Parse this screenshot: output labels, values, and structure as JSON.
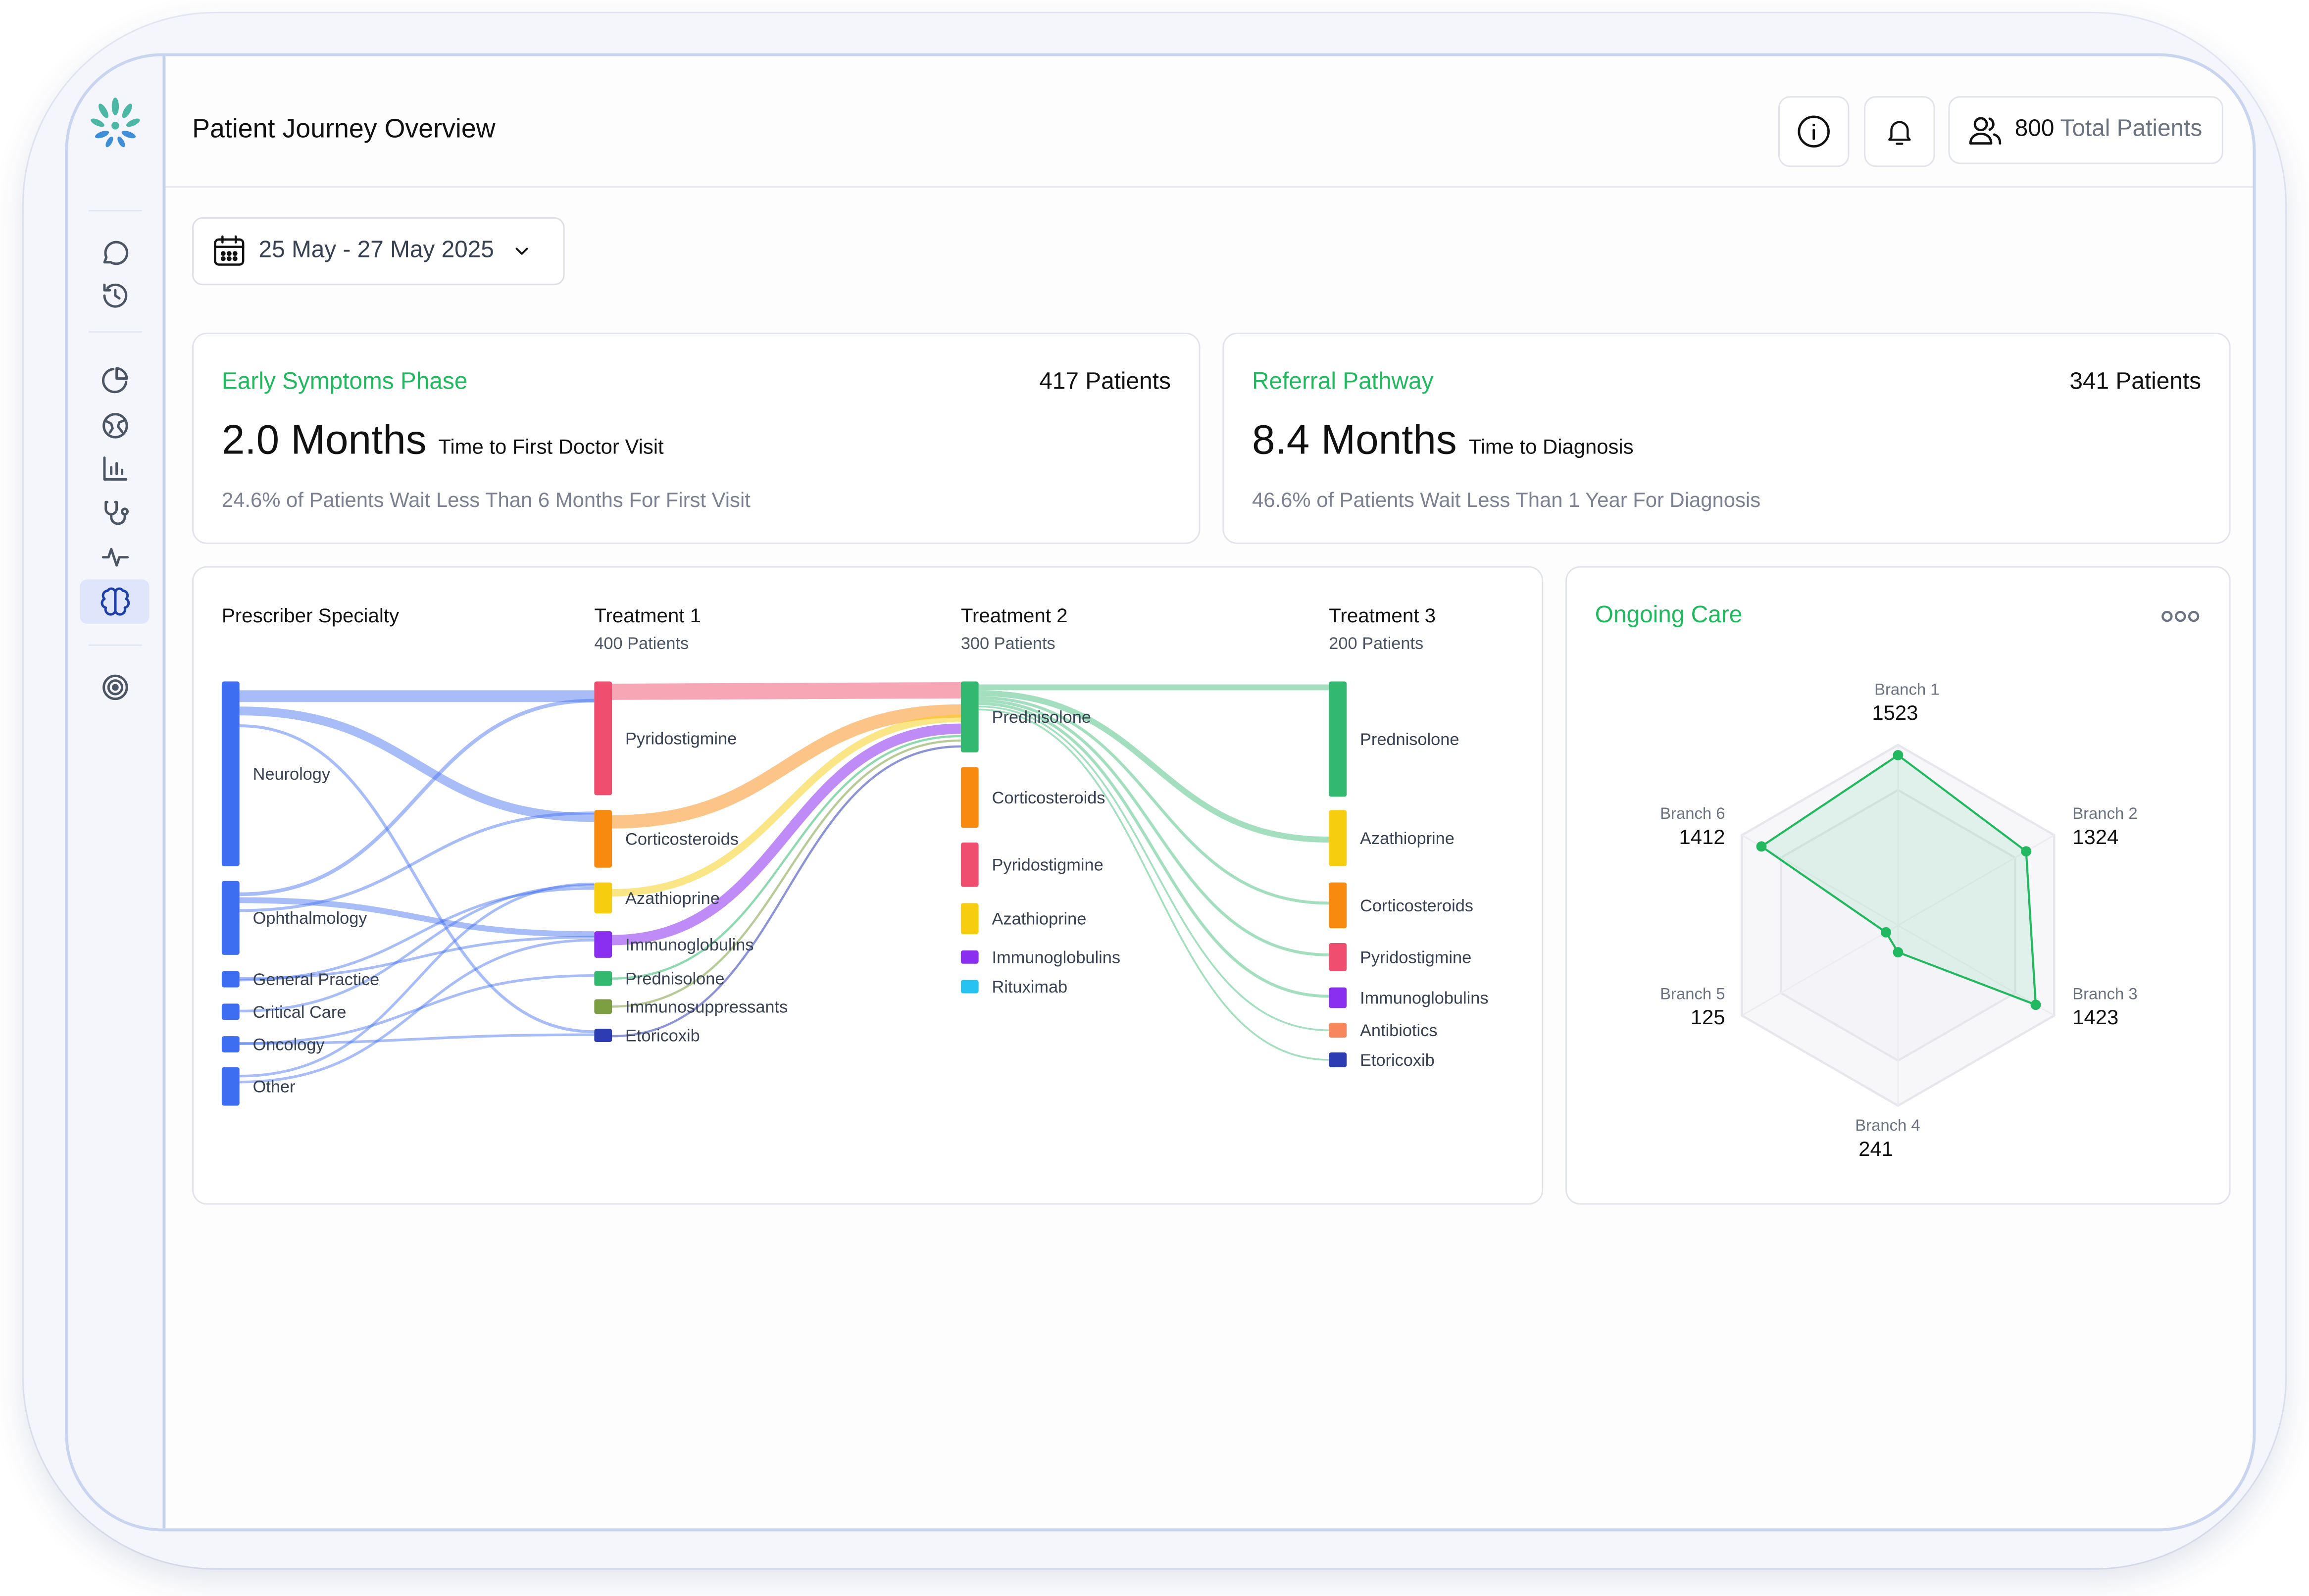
{
  "header": {
    "title": "Patient Journey Overview",
    "total_patients_value": "800",
    "total_patients_label": "Total Patients"
  },
  "date_range": "25 May - 27 May 2025",
  "kpi_cards": [
    {
      "title": "Early Symptoms Phase",
      "patients": "417 Patients",
      "value": "2.0 Months",
      "metric": "Time to First Doctor Visit",
      "note": "24.6% of Patients Wait Less Than 6 Months For First Visit"
    },
    {
      "title": "Referral Pathway",
      "patients": "341 Patients",
      "value": "8.4 Months",
      "metric": "Time to Diagnosis",
      "note": "46.6% of Patients Wait Less Than 1 Year For Diagnosis"
    }
  ],
  "sankey": {
    "columns": [
      {
        "title": "Prescriber Specialty",
        "subtitle": ""
      },
      {
        "title": "Treatment 1",
        "subtitle": "400 Patients"
      },
      {
        "title": "Treatment 2",
        "subtitle": "300 Patients"
      },
      {
        "title": "Treatment 3",
        "subtitle": "200 Patients"
      }
    ],
    "nodes": {
      "c0": [
        "Neurology",
        "Ophthalmology",
        "General Practice",
        "Critical Care",
        "Oncology",
        "Other"
      ],
      "c1": [
        "Pyridostigmine",
        "Corticosteroids",
        "Azathioprine",
        "Immunoglobulins",
        "Prednisolone",
        "Immunosuppressants",
        "Etoricoxib"
      ],
      "c2": [
        "Prednisolone",
        "Corticosteroids",
        "Pyridostigmine",
        "Azathioprine",
        "Immunoglobulins",
        "Rituximab"
      ],
      "c3": [
        "Prednisolone",
        "Azathioprine",
        "Corticosteroids",
        "Pyridostigmine",
        "Immunoglobulins",
        "Antibiotics",
        "Etoricoxib"
      ]
    },
    "colors": {
      "specialty": "#3d6df0",
      "Pyridostigmine": "#f04e6e",
      "Corticosteroids": "#f98a10",
      "Azathioprine": "#f7cd0f",
      "Immunoglobulins": "#8a2ef0",
      "Prednisolone": "#33b870",
      "Immunosuppressants": "#7e9e42",
      "Etoricoxib": "#2e3cb4",
      "Rituximab": "#26c2f0",
      "Antibiotics": "#f7875a"
    }
  },
  "ongoing_care": {
    "title": "Ongoing Care",
    "chart_data": {
      "type": "radar",
      "categories": [
        "Branch 1",
        "Branch 2",
        "Branch 3",
        "Branch 4",
        "Branch 5",
        "Branch 6"
      ],
      "values": [
        1523,
        1324,
        1423,
        241,
        125,
        1412
      ],
      "color": "#22b860"
    }
  },
  "icons": {
    "sidebar": [
      "chat-icon",
      "history-icon",
      "pie-chart-icon",
      "globe-icon",
      "bar-chart-icon",
      "stethoscope-icon",
      "activity-icon",
      "brain-icon",
      "target-icon"
    ],
    "header": [
      "info-icon",
      "bell-icon",
      "users-icon"
    ]
  }
}
